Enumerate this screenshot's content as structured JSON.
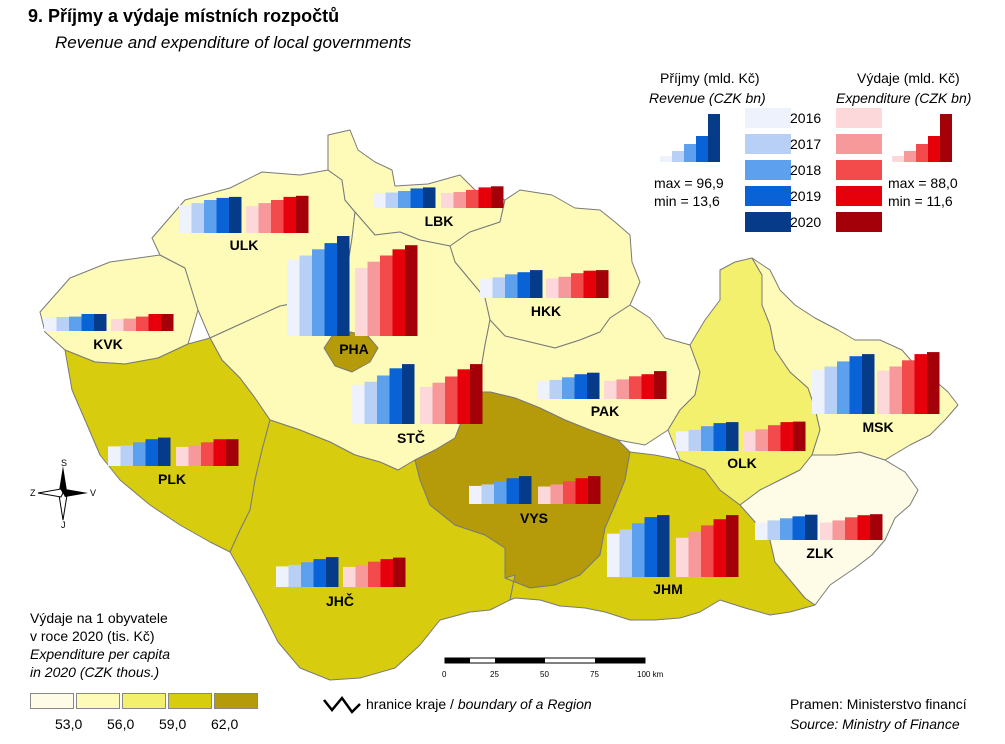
{
  "title": "9. Příjmy a výdaje místních rozpočtů",
  "subtitle": "Revenue and expenditure of local governments",
  "colors": {
    "revenue": [
      "#eef2fc",
      "#b9d0f6",
      "#5da0ee",
      "#0a63d6",
      "#063b8a"
    ],
    "expenditure": [
      "#fcd8da",
      "#f7989b",
      "#f34a4c",
      "#e6000c",
      "#a3000a"
    ],
    "per_capita_classes": [
      "#fefce6",
      "#fdfbb7",
      "#f3f06e",
      "#d7cc0e",
      "#b59a0a"
    ]
  },
  "legend_revenue": {
    "title": "Příjmy (mld. Kč)",
    "title_en": "Revenue (CZK bn)",
    "max": "max = 96,9",
    "min": "min = 13,6"
  },
  "legend_expenditure": {
    "title": "Výdaje (mld. Kč)",
    "title_en": "Expenditure (CZK bn)",
    "max": "max = 88,0",
    "min": "min = 11,6"
  },
  "years": [
    "2016",
    "2017",
    "2018",
    "2019",
    "2020"
  ],
  "per_capita_legend": {
    "line1": "Výdaje na 1 obyvatele",
    "line2": "v roce 2020 (tis. Kč)",
    "line3": "Expenditure per capita",
    "line4": "in 2020 (CZK thous.)",
    "breaks": [
      "53,0",
      "56,0",
      "59,0",
      "62,0"
    ]
  },
  "boundary_legend": {
    "cz": "hranice kraje / ",
    "en": "boundary of a Region"
  },
  "scale": {
    "ticks": [
      "0",
      "25",
      "50",
      "75",
      "100 km"
    ]
  },
  "compass": {
    "n": "S",
    "s": "J",
    "w": "Z",
    "e": "V"
  },
  "source": {
    "cz": "Pramen: Ministerstvo financí",
    "en": "Source: Ministry of Finance"
  },
  "regions": [
    {
      "code": "PHA",
      "class": 4,
      "revenue": [
        74.0,
        78.0,
        84.0,
        90.0,
        96.9
      ],
      "expenditure": [
        66.0,
        72.0,
        78.0,
        84.0,
        88.0
      ]
    },
    {
      "code": "STČ",
      "class": 1,
      "revenue": [
        38.0,
        41.0,
        47.0,
        54.0,
        58.0
      ],
      "expenditure": [
        36.0,
        40.0,
        46.0,
        53.0,
        58.0
      ]
    },
    {
      "code": "JHČ",
      "class": 3,
      "revenue": [
        20.0,
        21.5,
        24.0,
        27.0,
        29.0
      ],
      "expenditure": [
        19.5,
        21.5,
        24.5,
        27.0,
        28.5
      ]
    },
    {
      "code": "PLK",
      "class": 3,
      "revenue": [
        19.0,
        20.0,
        23.0,
        26.0,
        27.5
      ],
      "expenditure": [
        18.5,
        20.0,
        23.0,
        26.0,
        26.0
      ]
    },
    {
      "code": "KVK",
      "class": 1,
      "revenue": [
        13.6,
        13.6,
        14.0,
        16.5,
        16.5
      ],
      "expenditure": [
        11.6,
        12.0,
        14.0,
        16.5,
        16.5
      ]
    },
    {
      "code": "ULK",
      "class": 1,
      "revenue": [
        27.0,
        29.0,
        32.0,
        34.0,
        35.0
      ],
      "expenditure": [
        26.0,
        29.0,
        32.0,
        35.0,
        36.0
      ]
    },
    {
      "code": "LBK",
      "class": 1,
      "revenue": [
        14.5,
        15.0,
        16.5,
        19.0,
        20.0
      ],
      "expenditure": [
        14.5,
        15.5,
        17.5,
        20.0,
        21.0
      ]
    },
    {
      "code": "HKK",
      "class": 1,
      "revenue": [
        18.5,
        20.0,
        23.0,
        25.0,
        27.0
      ],
      "expenditure": [
        19.0,
        20.5,
        24.0,
        26.5,
        27.0
      ]
    },
    {
      "code": "PAK",
      "class": 1,
      "revenue": [
        17.5,
        18.5,
        21.0,
        24.0,
        25.5
      ],
      "expenditure": [
        17.5,
        19.0,
        22.0,
        24.0,
        27.0
      ]
    },
    {
      "code": "VYS",
      "class": 4,
      "revenue": [
        17.5,
        19.0,
        22.0,
        25.0,
        27.0
      ],
      "expenditure": [
        17.0,
        19.0,
        22.0,
        25.0,
        27.0
      ]
    },
    {
      "code": "JHM",
      "class": 3,
      "revenue": [
        42.0,
        46.0,
        52.0,
        58.0,
        60.0
      ],
      "expenditure": [
        38.0,
        44.0,
        50.0,
        56.0,
        60.0
      ]
    },
    {
      "code": "OLK",
      "class": 2,
      "revenue": [
        19.0,
        20.5,
        24.0,
        27.0,
        28.0
      ],
      "expenditure": [
        19.0,
        21.0,
        25.0,
        28.0,
        28.5
      ]
    },
    {
      "code": "ZLK",
      "class": 0,
      "revenue": [
        17.0,
        19.0,
        21.0,
        23.0,
        24.5
      ],
      "expenditure": [
        17.0,
        19.0,
        22.0,
        24.0,
        25.0
      ]
    },
    {
      "code": "MSK",
      "class": 1,
      "revenue": [
        43.0,
        46.0,
        51.0,
        56.0,
        58.0
      ],
      "expenditure": [
        42.0,
        46.0,
        52.0,
        58.0,
        60.0
      ]
    }
  ]
}
